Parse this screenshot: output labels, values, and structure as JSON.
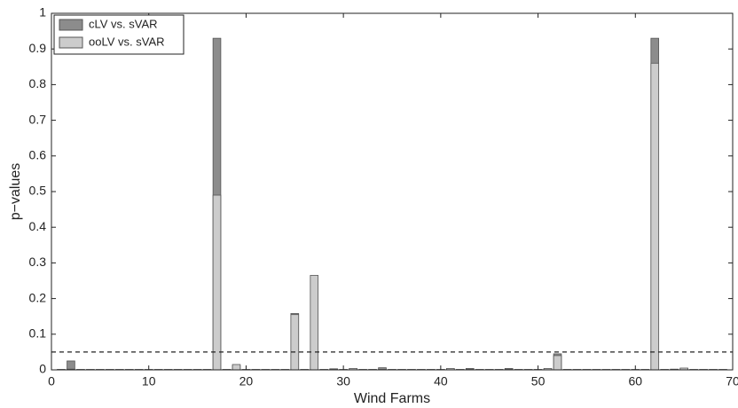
{
  "chart_data": {
    "type": "bar",
    "x_label": "Wind Farms",
    "y_label": "p−values",
    "x": [
      1,
      2,
      3,
      4,
      5,
      6,
      7,
      8,
      9,
      10,
      11,
      12,
      13,
      14,
      15,
      16,
      17,
      18,
      19,
      20,
      21,
      22,
      23,
      24,
      25,
      26,
      27,
      28,
      29,
      30,
      31,
      32,
      33,
      34,
      35,
      36,
      37,
      38,
      39,
      40,
      41,
      42,
      43,
      44,
      45,
      46,
      47,
      48,
      49,
      50,
      51,
      52,
      53,
      54,
      55,
      56,
      57,
      58,
      59,
      60,
      61,
      62,
      63,
      64,
      65,
      66,
      67,
      68,
      69
    ],
    "series": [
      {
        "name": "cLV vs. sVAR",
        "color": "#8c8c8c",
        "values": [
          0.001,
          0.025,
          0.001,
          0.001,
          0.001,
          0.001,
          0.001,
          0.001,
          0.001,
          0.001,
          0.001,
          0.001,
          0.001,
          0.001,
          0.001,
          0.001,
          0.93,
          0.001,
          0.012,
          0.001,
          0.001,
          0.001,
          0.001,
          0.001,
          0.158,
          0.001,
          0.035,
          0.001,
          0.003,
          0.001,
          0.002,
          0.001,
          0.001,
          0.006,
          0.001,
          0.001,
          0.001,
          0.001,
          0.001,
          0.001,
          0.003,
          0.001,
          0.004,
          0.001,
          0.001,
          0.001,
          0.004,
          0.001,
          0.001,
          0.001,
          0.002,
          0.045,
          0.001,
          0.001,
          0.001,
          0.001,
          0.001,
          0.001,
          0.001,
          0.001,
          0.001,
          0.93,
          0.001,
          0.002,
          0.003,
          0.001,
          0.001,
          0.001,
          0.001
        ]
      },
      {
        "name": "ooLV vs. sVAR",
        "color": "#cccccc",
        "values": [
          0.001,
          0.002,
          0.001,
          0.001,
          0.001,
          0.001,
          0.001,
          0.001,
          0.001,
          0.001,
          0.001,
          0.001,
          0.001,
          0.001,
          0.001,
          0.001,
          0.49,
          0.001,
          0.015,
          0.001,
          0.001,
          0.001,
          0.001,
          0.001,
          0.155,
          0.001,
          0.265,
          0.001,
          0.001,
          0.001,
          0.004,
          0.001,
          0.001,
          0.001,
          0.001,
          0.001,
          0.001,
          0.001,
          0.001,
          0.001,
          0.004,
          0.001,
          0.001,
          0.001,
          0.001,
          0.001,
          0.001,
          0.001,
          0.001,
          0.001,
          0.004,
          0.04,
          0.001,
          0.001,
          0.001,
          0.001,
          0.001,
          0.001,
          0.001,
          0.001,
          0.001,
          0.86,
          0.001,
          0.001,
          0.005,
          0.001,
          0.001,
          0.001,
          0.001
        ]
      }
    ],
    "reference_line": 0.05,
    "xlim": [
      0,
      70
    ],
    "xticks": [
      0,
      10,
      20,
      30,
      40,
      50,
      60,
      70
    ],
    "ylim": [
      0,
      1
    ],
    "yticks": [
      0,
      0.1,
      0.2,
      0.3,
      0.4,
      0.5,
      0.6,
      0.7,
      0.8,
      0.9,
      1
    ],
    "legend": "top-left"
  }
}
